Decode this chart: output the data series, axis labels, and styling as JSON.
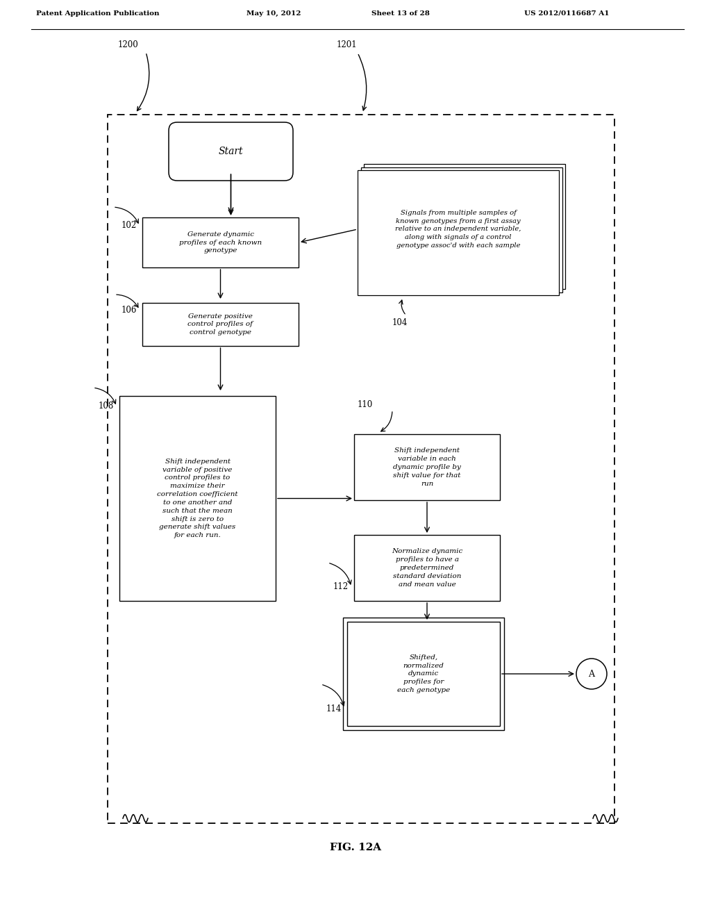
{
  "bg_color": "#ffffff",
  "header_text": "Patent Application Publication",
  "header_date": "May 10, 2012",
  "header_sheet": "Sheet 13 of 28",
  "header_patent": "US 2012/0116687 A1",
  "fig_label": "FIG. 12A",
  "label_1200": "1200",
  "label_1201": "1201",
  "label_104": "104",
  "box_start_text": "Start",
  "box_102_label": "102",
  "box_102_text": "Generate dynamic\nprofiles of each known\ngenotype",
  "box_106_label": "106",
  "box_106_text": "Generate positive\ncontrol profiles of\ncontrol genotype",
  "box_108_label": "108",
  "box_108_text": "Shift independent\nvariable of positive\ncontrol profiles to\nmaximize their\ncorrelation coefficient\nto one another and\nsuch that the mean\nshift is zero to\ngenerate shift values\nfor each run.",
  "box_110_label": "110",
  "box_110_text": "Shift independent\nvariable in each\ndynamic profile by\nshift value for that\nrun",
  "box_112_label": "112",
  "box_112_text": "Normalize dynamic\nprofiles to have a\npredetermined\nstandard deviation\nand mean value",
  "box_114_label": "114",
  "box_114_text": "Shifted,\nnormalized\ndynamic\nprofiles for\neach genotype",
  "data_box_text": "Signals from multiple samples of\nknown genotypes from a first assay\nrelative to an independent variable,\nalong with signals of a control\ngenotype assoc'd with each sample",
  "circle_A_text": "A"
}
